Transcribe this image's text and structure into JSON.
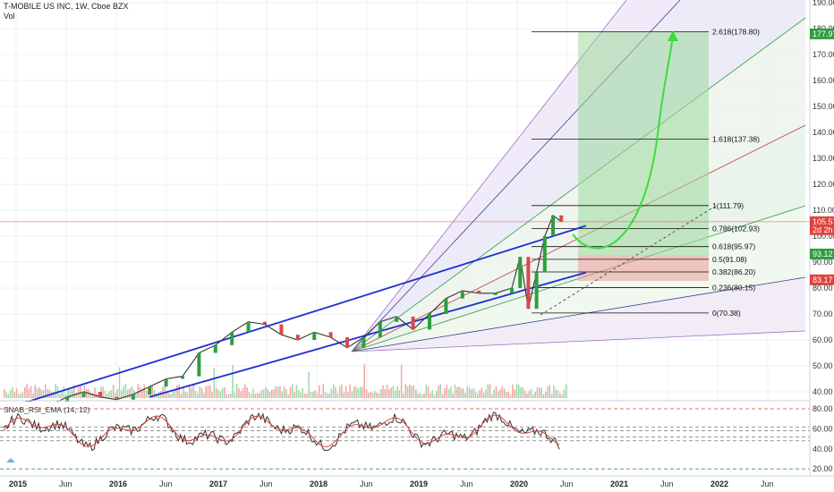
{
  "header": {
    "title": "T-MOBILE US INC, 1W, Cboe BZX",
    "volume_label": "Vol"
  },
  "rsi": {
    "label": "SNAB_RSI_EMA (14, 12)",
    "ticks": [
      "80.00",
      "60.00",
      "40.00",
      "20.00"
    ],
    "levels": [
      80,
      60,
      40,
      20
    ]
  },
  "price_axis": {
    "ticks": [
      "190.00",
      "180.00",
      "170.00",
      "160.00",
      "150.00",
      "140.00",
      "130.00",
      "120.00",
      "110.00",
      "100.00",
      "90.00",
      "80.00",
      "70.00",
      "60.00",
      "50.00",
      "40.00"
    ],
    "values": [
      190,
      180,
      170,
      160,
      150,
      140,
      130,
      120,
      110,
      100,
      90,
      80,
      70,
      60,
      50,
      40
    ],
    "badges": [
      {
        "text": "177.97",
        "value": 177.97,
        "color": "#2e9e3f"
      },
      {
        "text": "105.57",
        "value": 105.57,
        "color": "#e0423a"
      },
      {
        "text": "2d 2h",
        "value": 102.5,
        "color": "#e0423a"
      },
      {
        "text": "93.12",
        "value": 93.12,
        "color": "#2e9e3f"
      },
      {
        "text": "83.17",
        "value": 83.17,
        "color": "#e0423a"
      }
    ]
  },
  "time_axis": {
    "labels": [
      "2015",
      "Jun",
      "2016",
      "Jun",
      "2017",
      "Jun",
      "2018",
      "Jun",
      "2019",
      "Jun",
      "2020",
      "Jun",
      "2021",
      "Jun",
      "2022",
      "Jun"
    ]
  },
  "fib_levels": [
    {
      "label": "2.618(178.80)",
      "value": 178.8
    },
    {
      "label": "1.618(137.38)",
      "value": 137.38
    },
    {
      "label": "1(111.79)",
      "value": 111.79
    },
    {
      "label": "0.786(102.93)",
      "value": 102.93
    },
    {
      "label": "0.618(95.97)",
      "value": 95.97
    },
    {
      "label": "0.5(91.08)",
      "value": 91.08
    },
    {
      "label": "0.382(86.20)",
      "value": 86.2
    },
    {
      "label": "0.236(80.15)",
      "value": 80.15
    },
    {
      "label": "0(70.38)",
      "value": 70.38
    }
  ],
  "chart_data": {
    "type": "line",
    "title": "T-MOBILE US INC, 1W, Cboe BZX",
    "ylim": [
      37,
      191
    ],
    "x_range": [
      "2015-01",
      "2022-09"
    ],
    "series": [
      {
        "values": [
          [
            "2015-01",
            32
          ],
          [
            "2015-03",
            33
          ],
          [
            "2015-05",
            35
          ],
          [
            "2015-07",
            38
          ],
          [
            "2015-09",
            40
          ],
          [
            "2015-11",
            38
          ],
          [
            "2016-01",
            37
          ],
          [
            "2016-03",
            39
          ],
          [
            "2016-05",
            42
          ],
          [
            "2016-07",
            45
          ],
          [
            "2016-09",
            46
          ],
          [
            "2016-11",
            55
          ],
          [
            "2017-01",
            58
          ],
          [
            "2017-03",
            63
          ],
          [
            "2017-05",
            67
          ],
          [
            "2017-07",
            66
          ],
          [
            "2017-09",
            62
          ],
          [
            "2017-11",
            60
          ],
          [
            "2018-01",
            63
          ],
          [
            "2018-03",
            61
          ],
          [
            "2018-05",
            57
          ],
          [
            "2018-07",
            61
          ],
          [
            "2018-09",
            67
          ],
          [
            "2018-11",
            69
          ],
          [
            "2019-01",
            64
          ],
          [
            "2019-03",
            70
          ],
          [
            "2019-05",
            76
          ],
          [
            "2019-07",
            79
          ],
          [
            "2019-09",
            78
          ],
          [
            "2019-11",
            78
          ],
          [
            "2020-01",
            80
          ],
          [
            "2020-02",
            92
          ],
          [
            "2020-03",
            72
          ],
          [
            "2020-04",
            86
          ],
          [
            "2020-05",
            100
          ],
          [
            "2020-06",
            108
          ],
          [
            "2020-07",
            105.57
          ]
        ]
      }
    ],
    "channels": [
      {
        "from": [
          "2015-01",
          35
        ],
        "to": [
          "2020-10",
          104
        ]
      },
      {
        "from": [
          "2016-05",
          38
        ],
        "to": [
          "2020-10",
          86
        ]
      }
    ],
    "target_zone": {
      "entry": 93.12,
      "stop": 83.17,
      "target": 177.97
    }
  }
}
